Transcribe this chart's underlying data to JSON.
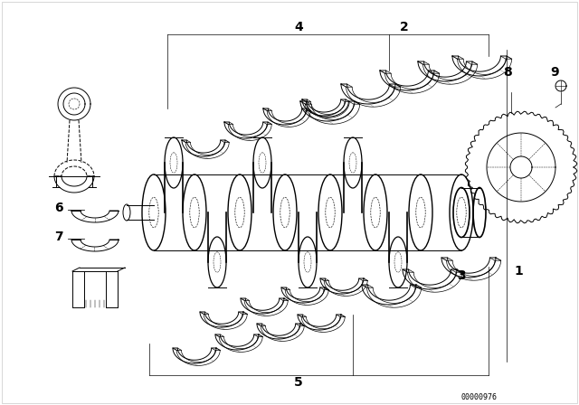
{
  "background_color": "#ffffff",
  "line_color": "#000000",
  "fig_width": 6.4,
  "fig_height": 4.48,
  "dpi": 100,
  "diagram_id": "00000976",
  "border_color": "#c8c8c8"
}
